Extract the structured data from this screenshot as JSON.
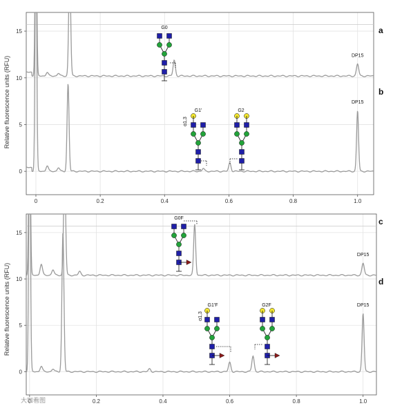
{
  "watermark": "大咖看图",
  "chart_data": [
    {
      "type": "line",
      "ylabel": "Relative fluorescence units (RFU)",
      "xlim": [
        -0.03,
        1.05
      ],
      "ylim": [
        -2.5,
        17
      ],
      "xticks": [
        0,
        0.2,
        0.4,
        0.6,
        0.8,
        1.0
      ],
      "xtick_labels": [
        "0",
        "0.2",
        "0.4",
        "0.6",
        "0.8",
        "1.0"
      ],
      "yticks": [
        0,
        5,
        10,
        15
      ],
      "ytick_labels": [
        "0",
        "5",
        "10",
        "15"
      ],
      "grid": true,
      "series": [
        {
          "panel": "a",
          "baseline": 10.2,
          "peaks": [
            {
              "x": 0.0,
              "height": 20
            },
            {
              "x": 0.105,
              "height": 12
            },
            {
              "x": 0.035,
              "height": 0.4
            },
            {
              "x": 0.07,
              "height": 0.3
            },
            {
              "x": 0.43,
              "height": 1.7
            },
            {
              "x": 1.0,
              "height": 1.3
            }
          ],
          "annotations": [
            {
              "label": "G0",
              "x": 0.42
            },
            {
              "label": "DP15",
              "x": 1.0
            }
          ]
        },
        {
          "panel": "b",
          "baseline": 0.0,
          "peaks": [
            {
              "x": 0.0,
              "height": 30
            },
            {
              "x": 0.1,
              "height": 9.4
            },
            {
              "x": 0.035,
              "height": 0.6
            },
            {
              "x": 0.07,
              "height": 0.4
            },
            {
              "x": 0.52,
              "height": 0.3
            },
            {
              "x": 0.603,
              "height": 0.9
            },
            {
              "x": 1.0,
              "height": 6.5
            }
          ],
          "annotations": [
            {
              "label": "G1'",
              "x": 0.52
            },
            {
              "label": "α1,3",
              "x": 0.46
            },
            {
              "label": "G2",
              "x": 0.63
            },
            {
              "label": "DP15",
              "x": 1.0
            }
          ]
        }
      ]
    },
    {
      "type": "line",
      "ylabel": "Relative fluorescence units (RFU)",
      "xlim": [
        -0.01,
        1.04
      ],
      "ylim": [
        -2.5,
        17
      ],
      "xticks": [
        0,
        0.2,
        0.4,
        0.6,
        0.8,
        1.0
      ],
      "xtick_labels": [
        "0",
        "0.2",
        "0.4",
        "0.6",
        "0.8",
        "1.0"
      ],
      "yticks": [
        0,
        5,
        10,
        15
      ],
      "ytick_labels": [
        "0",
        "5",
        "10",
        "15"
      ],
      "grid": true,
      "series": [
        {
          "panel": "c",
          "baseline": 10.4,
          "peaks": [
            {
              "x": 0.0,
              "height": 20
            },
            {
              "x": 0.105,
              "height": 12
            },
            {
              "x": 0.035,
              "height": 1.2
            },
            {
              "x": 0.07,
              "height": 0.6
            },
            {
              "x": 0.15,
              "height": 0.4
            },
            {
              "x": 0.495,
              "height": 5.5
            },
            {
              "x": 1.0,
              "height": 1.3
            }
          ],
          "annotations": [
            {
              "label": "G0F",
              "x": 0.45
            },
            {
              "label": "DP15",
              "x": 1.0
            }
          ]
        },
        {
          "panel": "d",
          "baseline": 0.0,
          "peaks": [
            {
              "x": 0.0,
              "height": 30
            },
            {
              "x": 0.1,
              "height": 15
            },
            {
              "x": 0.035,
              "height": 0.6
            },
            {
              "x": 0.07,
              "height": 0.3
            },
            {
              "x": 0.36,
              "height": 0.3
            },
            {
              "x": 0.6,
              "height": 1.0
            },
            {
              "x": 0.67,
              "height": 1.7
            },
            {
              "x": 1.0,
              "height": 6.3
            }
          ],
          "annotations": [
            {
              "label": "G1'F",
              "x": 0.56
            },
            {
              "label": "α1,3",
              "x": 0.5
            },
            {
              "label": "G2F",
              "x": 0.72
            },
            {
              "label": "DP15",
              "x": 1.0
            }
          ]
        }
      ]
    }
  ],
  "panel_labels": [
    "a",
    "b",
    "c",
    "d"
  ],
  "colors": {
    "trace": "#9a9a9a",
    "grid": "#e3e3e3",
    "axis": "#555555",
    "glcnac": "#1f1fa8",
    "mannose": "#22a33a",
    "galactose": "#f2e630",
    "fucose": "#8b1a1a"
  }
}
